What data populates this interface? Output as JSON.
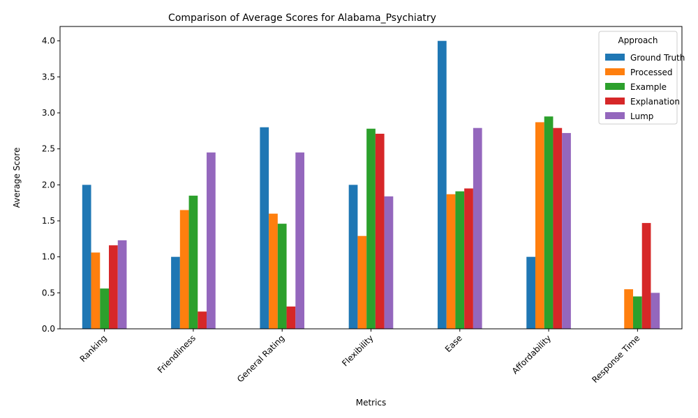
{
  "chart_data": {
    "type": "bar",
    "title": "Comparison of Average Scores for Alabama_Psychiatry",
    "xlabel": "Metrics",
    "ylabel": "Average Score",
    "ylim": [
      0,
      4.2
    ],
    "yticks": [
      0.0,
      0.5,
      1.0,
      1.5,
      2.0,
      2.5,
      3.0,
      3.5,
      4.0
    ],
    "ytick_labels": [
      "0.0",
      "0.5",
      "1.0",
      "1.5",
      "2.0",
      "2.5",
      "3.0",
      "3.5",
      "4.0"
    ],
    "grid": false,
    "legend_title": "Approach",
    "legend_position": "top-right",
    "categories": [
      "Ranking",
      "Friendliness",
      "General Rating",
      "Flexibility",
      "Ease",
      "Affordability",
      "Response Time"
    ],
    "series": [
      {
        "name": "Ground Truth",
        "color": "#1f77b4",
        "values": [
          2.0,
          1.0,
          2.8,
          2.0,
          4.0,
          1.0,
          0.0
        ]
      },
      {
        "name": "Processed",
        "color": "#ff7f0e",
        "values": [
          1.06,
          1.65,
          1.6,
          1.29,
          1.87,
          2.87,
          0.55
        ]
      },
      {
        "name": "Example",
        "color": "#2ca02c",
        "values": [
          0.56,
          1.85,
          1.46,
          2.78,
          1.91,
          2.95,
          0.45
        ]
      },
      {
        "name": "Explanation",
        "color": "#d62728",
        "values": [
          1.16,
          0.24,
          0.31,
          2.71,
          1.95,
          2.79,
          1.47
        ]
      },
      {
        "name": "Lump",
        "color": "#9467bd",
        "values": [
          1.23,
          2.45,
          2.45,
          1.84,
          2.79,
          2.72,
          0.5
        ]
      }
    ]
  }
}
